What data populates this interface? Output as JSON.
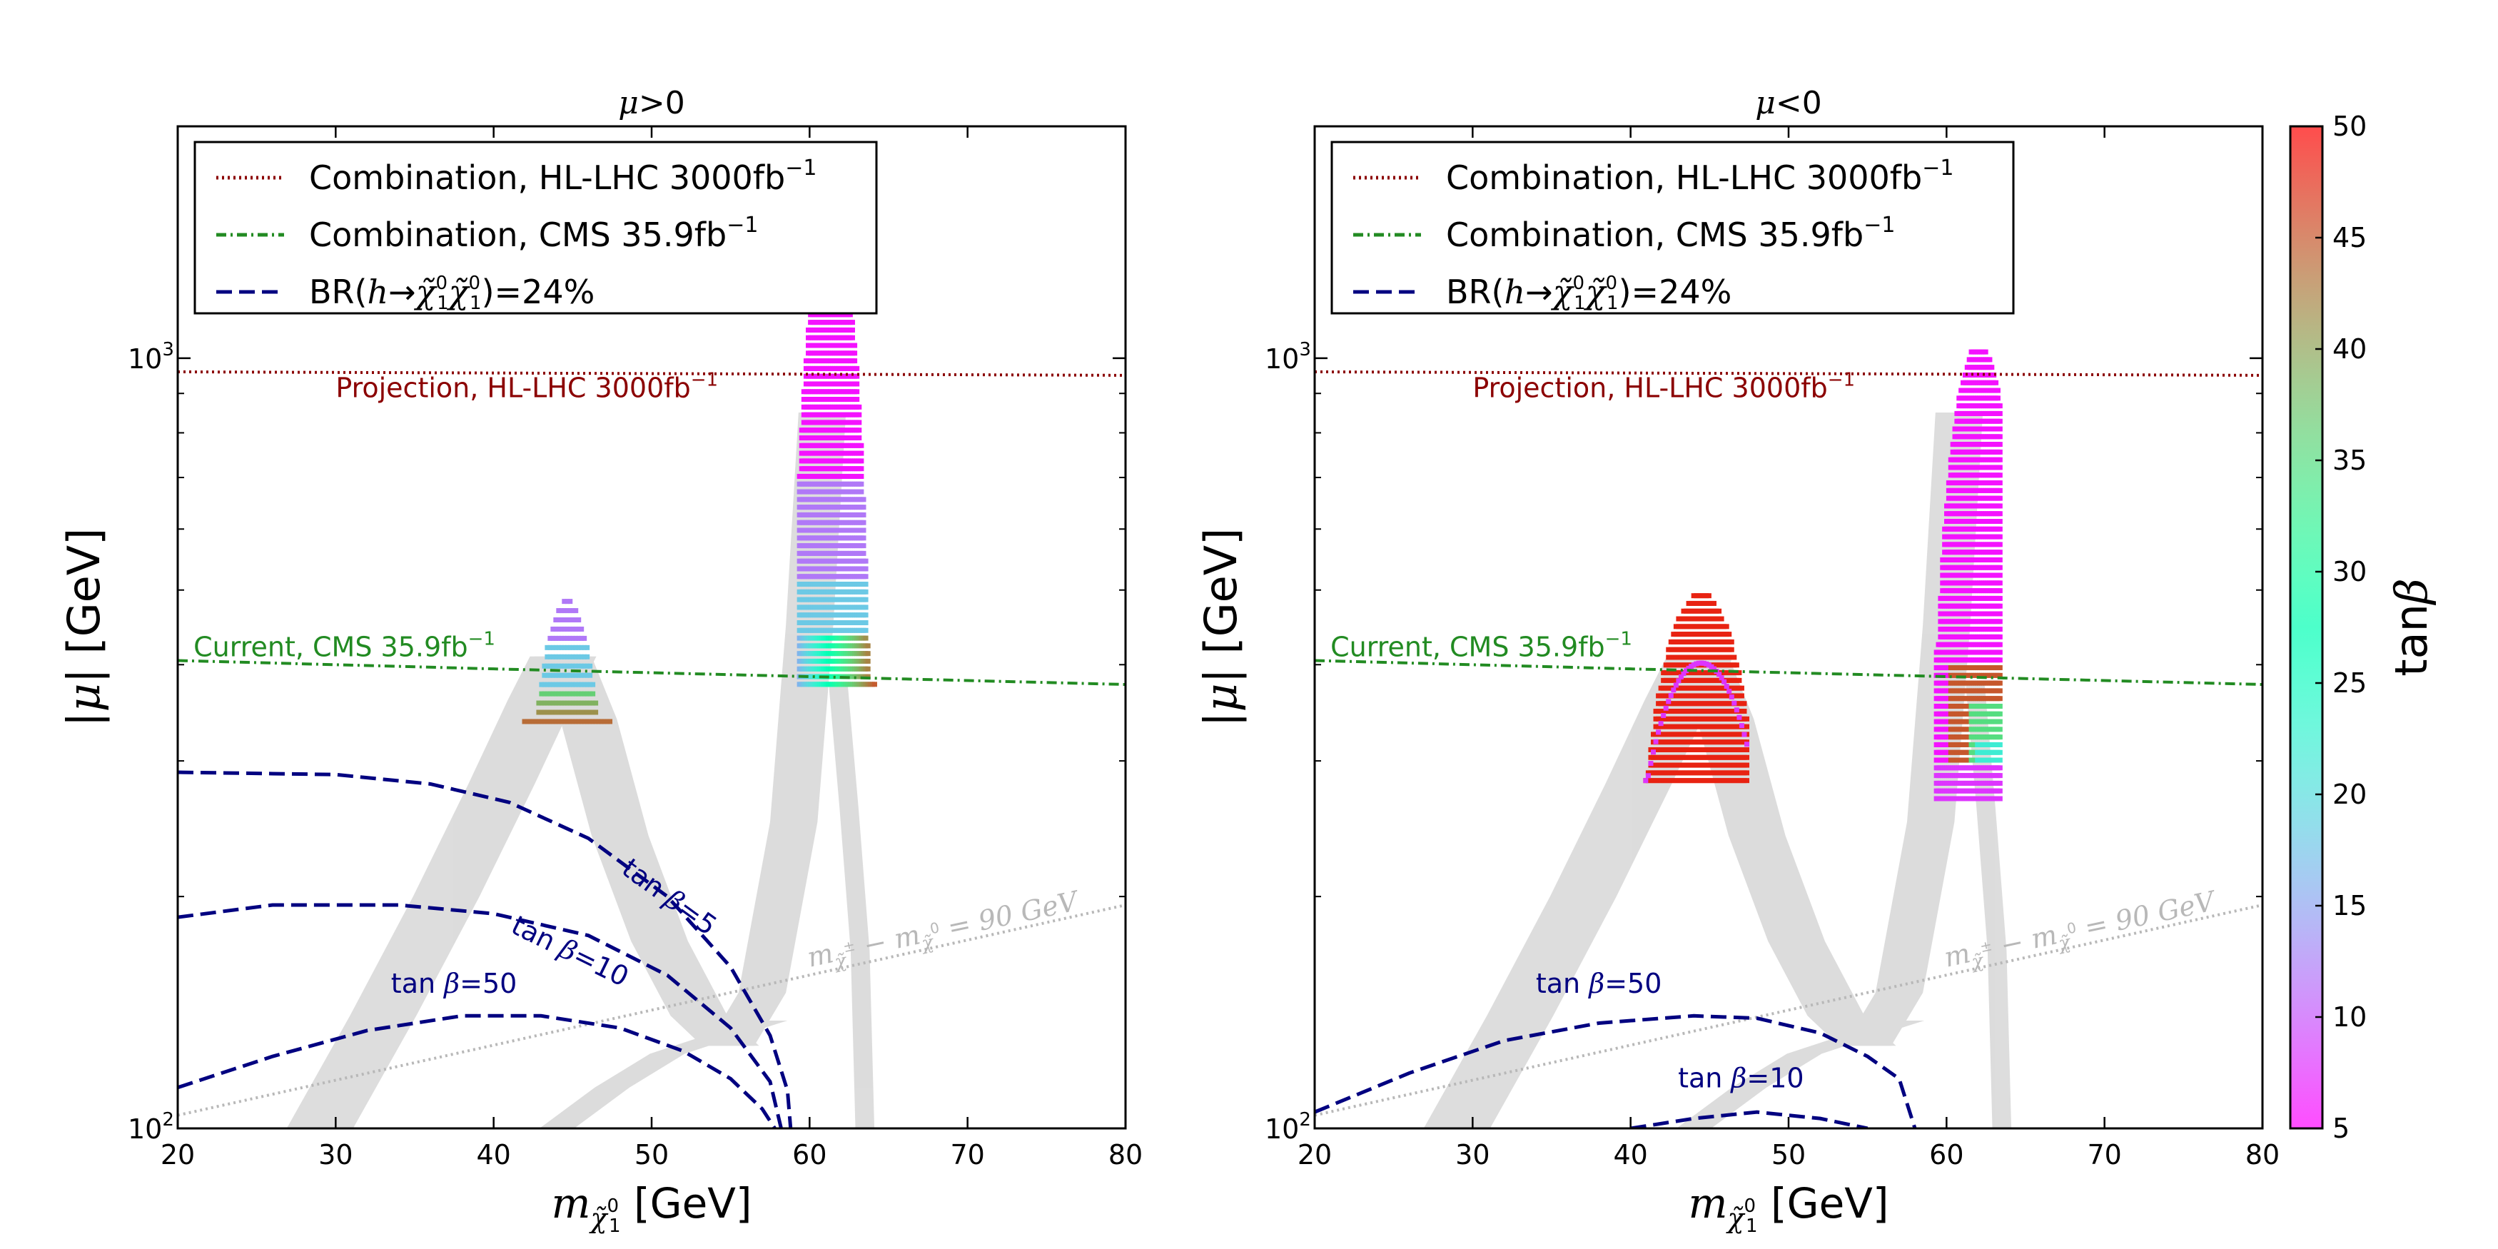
{
  "chart_data": [
    {
      "type": "scatter",
      "title_symbol": "μ",
      "title_rel": ">0",
      "xlabel_sym": "m",
      "xlabel_sub": "χ̃",
      "xlabel_sub2": "0",
      "xlabel_sub3": "1",
      "xlabel_unit": "[GeV]",
      "ylabel_pre": "|",
      "ylabel_sym": "μ",
      "ylabel_post": "| [GeV]",
      "xlim": [
        20,
        80
      ],
      "ylim": [
        100,
        2000
      ],
      "yscale": "log",
      "xticks": [
        "20",
        "30",
        "40",
        "50",
        "60",
        "70",
        "80"
      ],
      "yticks": [
        {
          "base": "10",
          "exp": "2"
        },
        {
          "base": "10",
          "exp": "3"
        }
      ],
      "legend": {
        "position": "top-left",
        "entries": [
          {
            "label": "Combination, HL-LHC 3000fb",
            "sup": "−1",
            "color": "#8b0000",
            "style": "dotted"
          },
          {
            "label": "Combination, CMS 35.9fb",
            "sup": "−1",
            "color": "#228b22",
            "style": "dashdot"
          },
          {
            "label_pre": "BR(",
            "label_h": "h",
            "label_arrow": "→",
            "label_chi": "χ̃",
            "label_post": ")=24%",
            "color": "#000080",
            "style": "dashed"
          }
        ]
      },
      "lines": [
        {
          "name": "HL-LHC projection",
          "style": "dotted",
          "color": "#8b0000",
          "x": [
            20,
            80
          ],
          "y": [
            960,
            950
          ]
        },
        {
          "name": "CMS current",
          "style": "dashdot",
          "color": "#228b22",
          "x": [
            20,
            40,
            60,
            80
          ],
          "y": [
            405,
            395,
            386,
            377
          ]
        },
        {
          "name": "mass difference 90 GeV",
          "style": "dotted",
          "color": "#b8b8b8",
          "x": [
            20,
            80
          ],
          "y": [
            104,
            195
          ]
        }
      ],
      "annotations": [
        {
          "text": "Projection, HL-LHC 3000fb",
          "sup": "−1",
          "color": "#8b0000",
          "x": 30,
          "y": 890,
          "angle": 0
        },
        {
          "text": "Current, CMS 35.9fb",
          "sup": "−1",
          "color": "#228b22",
          "x": 21,
          "y": 410,
          "angle": 0
        },
        {
          "text_pre": "m",
          "text_mid": " − m",
          "text_post": " = 90 GeV",
          "color": "#b8b8b8",
          "x": 60,
          "y": 162,
          "angle": -12
        }
      ],
      "br_contours": [
        {
          "label": "tan β=5",
          "label_tan": "tan ",
          "label_beta": "β",
          "label_val": "=5",
          "label_x": 48,
          "label_y": 215,
          "label_angle": 36,
          "x": [
            20,
            30,
            36,
            41,
            46,
            51,
            55,
            57.5,
            58.6,
            58.8
          ],
          "y": [
            290,
            288,
            280,
            265,
            238,
            200,
            162,
            132,
            112,
            100
          ]
        },
        {
          "label": "tan β=10",
          "label_tan": "tan ",
          "label_beta": "β",
          "label_val": "=10",
          "label_x": 41,
          "label_y": 180,
          "label_angle": 26,
          "x": [
            20,
            26,
            34,
            40,
            46,
            51,
            55,
            57.5,
            58.2
          ],
          "y": [
            188,
            195,
            195,
            190,
            178,
            158,
            135,
            115,
            100
          ]
        },
        {
          "label": "tan β=50",
          "label_tan": "tan ",
          "label_beta": "β",
          "label_val": "=50",
          "label_x": 33.5,
          "label_y": 150,
          "label_angle": 0,
          "x": [
            20,
            26,
            32,
            38,
            43,
            48,
            52,
            55,
            57,
            57.8
          ],
          "y": [
            113,
            124,
            134,
            140,
            140,
            135,
            126,
            116,
            106,
            100
          ]
        }
      ]
    },
    {
      "type": "scatter",
      "title_symbol": "μ",
      "title_rel": "<0",
      "xlabel_sym": "m",
      "xlabel_sub": "χ̃",
      "xlabel_sub2": "0",
      "xlabel_sub3": "1",
      "xlabel_unit": "[GeV]",
      "ylabel_pre": "|",
      "ylabel_sym": "μ",
      "ylabel_post": "| [GeV]",
      "xlim": [
        20,
        80
      ],
      "ylim": [
        100,
        2000
      ],
      "yscale": "log",
      "xticks": [
        "20",
        "30",
        "40",
        "50",
        "60",
        "70",
        "80"
      ],
      "yticks": [
        {
          "base": "10",
          "exp": "2"
        },
        {
          "base": "10",
          "exp": "3"
        }
      ],
      "legend": {
        "position": "top-left",
        "entries": [
          {
            "label": "Combination, HL-LHC 3000fb",
            "sup": "−1",
            "color": "#8b0000",
            "style": "dotted"
          },
          {
            "label": "Combination, CMS 35.9fb",
            "sup": "−1",
            "color": "#228b22",
            "style": "dashdot"
          },
          {
            "label_pre": "BR(",
            "label_h": "h",
            "label_arrow": "→",
            "label_chi": "χ̃",
            "label_post": ")=24%",
            "color": "#000080",
            "style": "dashed"
          }
        ]
      },
      "lines": [
        {
          "name": "HL-LHC projection",
          "style": "dotted",
          "color": "#8b0000",
          "x": [
            20,
            80
          ],
          "y": [
            960,
            950
          ]
        },
        {
          "name": "CMS current",
          "style": "dashdot",
          "color": "#228b22",
          "x": [
            20,
            40,
            60,
            80
          ],
          "y": [
            405,
            395,
            386,
            377
          ]
        },
        {
          "name": "mass difference 90 GeV",
          "style": "dotted",
          "color": "#b8b8b8",
          "x": [
            20,
            80
          ],
          "y": [
            104,
            195
          ]
        }
      ],
      "annotations": [
        {
          "text": "Projection, HL-LHC 3000fb",
          "sup": "−1",
          "color": "#8b0000",
          "x": 30,
          "y": 890,
          "angle": 0
        },
        {
          "text": "Current, CMS 35.9fb",
          "sup": "−1",
          "color": "#228b22",
          "x": 21,
          "y": 410,
          "angle": 0
        },
        {
          "text_pre": "m",
          "text_mid": " − m",
          "text_post": " = 90 GeV",
          "color": "#b8b8b8",
          "x": 60,
          "y": 162,
          "angle": -12
        }
      ],
      "br_contours": [
        {
          "label": "tan β=50",
          "label_tan": "tan ",
          "label_beta": "β",
          "label_val": "=50",
          "label_x": 34,
          "label_y": 150,
          "label_angle": 0,
          "x": [
            20,
            26,
            32,
            38,
            44,
            48,
            52,
            55,
            57,
            58
          ],
          "y": [
            105,
            118,
            130,
            137,
            140,
            139,
            133,
            124,
            116,
            100
          ]
        },
        {
          "label": "tan β=10",
          "label_tan": "tan ",
          "label_beta": "β",
          "label_val": "=10",
          "label_x": 43,
          "label_y": 113,
          "label_angle": 0,
          "x": [
            40,
            44,
            48,
            52,
            55
          ],
          "y": [
            100,
            103,
            105,
            103,
            100
          ]
        }
      ]
    }
  ],
  "colorbar": {
    "label_pre": "tan",
    "label_sym": "β",
    "min": 5,
    "max": 50,
    "ticks": [
      "5",
      "10",
      "15",
      "20",
      "25",
      "30",
      "35",
      "40",
      "45",
      "50"
    ],
    "colormap": "rainbow"
  }
}
